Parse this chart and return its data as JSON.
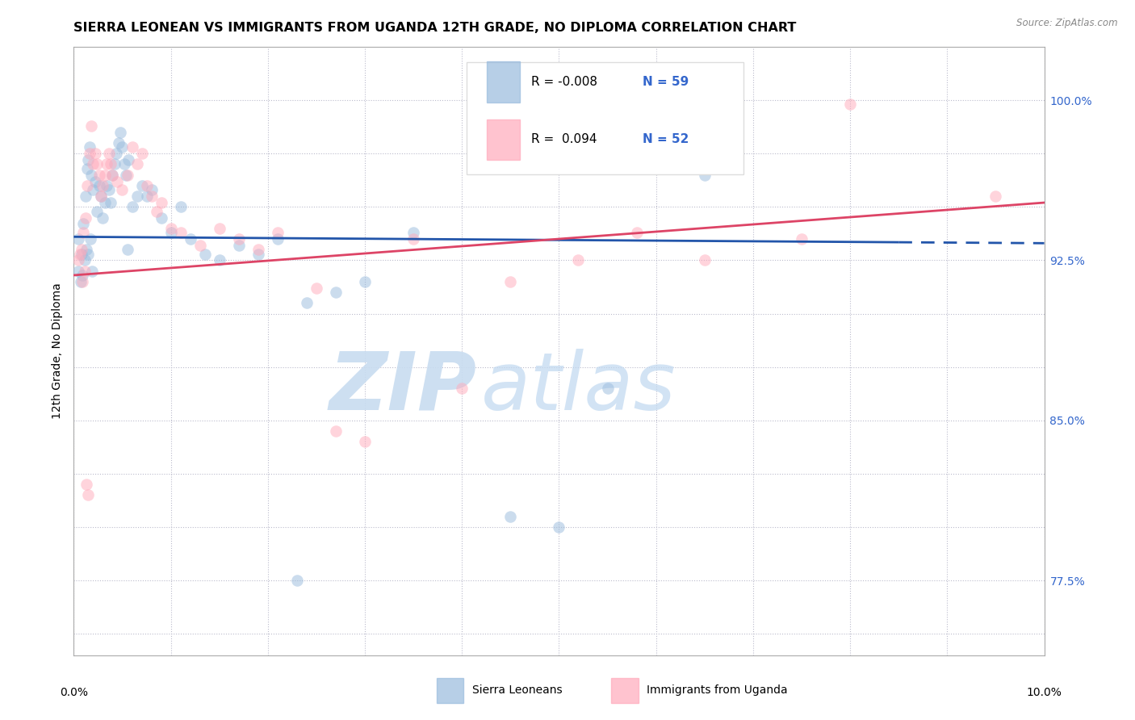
{
  "title": "SIERRA LEONEAN VS IMMIGRANTS FROM UGANDA 12TH GRADE, NO DIPLOMA CORRELATION CHART",
  "source": "Source: ZipAtlas.com",
  "ylabel": "12th Grade, No Diploma",
  "yticks": [
    75.0,
    77.5,
    80.0,
    82.5,
    85.0,
    87.5,
    90.0,
    92.5,
    95.0,
    97.5,
    100.0
  ],
  "ytick_labels": [
    "",
    "77.5%",
    "",
    "",
    "85.0%",
    "",
    "",
    "92.5%",
    "",
    "",
    "100.0%"
  ],
  "xmin": 0.0,
  "xmax": 10.0,
  "ymin": 74.0,
  "ymax": 102.5,
  "legend_R1": "R = -0.008",
  "legend_N1": "N = 59",
  "legend_R2": "R =  0.094",
  "legend_N2": "N = 52",
  "legend_label1": "Sierra Leoneans",
  "legend_label2": "Immigrants from Uganda",
  "blue_color": "#99BBDD",
  "pink_color": "#FFAABB",
  "blue_edge_color": "#88AACC",
  "pink_edge_color": "#EE8899",
  "blue_line_color": "#2255AA",
  "pink_line_color": "#DD4466",
  "blue_line_y0": 93.6,
  "blue_line_y1": 93.3,
  "pink_line_y0": 91.8,
  "pink_line_y1": 95.2,
  "blue_dash_start": 8.5,
  "blue_points_x": [
    0.05,
    0.08,
    0.1,
    0.12,
    0.14,
    0.15,
    0.16,
    0.18,
    0.2,
    0.22,
    0.24,
    0.26,
    0.28,
    0.3,
    0.32,
    0.34,
    0.36,
    0.38,
    0.4,
    0.42,
    0.44,
    0.46,
    0.48,
    0.5,
    0.52,
    0.54,
    0.56,
    0.6,
    0.65,
    0.7,
    0.75,
    0.8,
    0.9,
    1.0,
    1.1,
    1.2,
    1.35,
    1.5,
    1.7,
    1.9,
    2.1,
    2.4,
    2.7,
    3.0,
    3.5,
    4.5,
    5.0,
    5.5,
    6.5,
    0.05,
    0.07,
    0.09,
    0.11,
    0.13,
    0.15,
    0.17,
    0.19,
    0.55,
    2.3
  ],
  "blue_points_y": [
    93.5,
    92.8,
    94.2,
    95.5,
    96.8,
    97.2,
    97.8,
    96.5,
    95.8,
    96.2,
    94.8,
    96.0,
    95.5,
    94.5,
    95.2,
    96.0,
    95.8,
    95.2,
    96.5,
    97.0,
    97.5,
    98.0,
    98.5,
    97.8,
    97.0,
    96.5,
    97.2,
    95.0,
    95.5,
    96.0,
    95.5,
    95.8,
    94.5,
    93.8,
    95.0,
    93.5,
    92.8,
    92.5,
    93.2,
    92.8,
    93.5,
    90.5,
    91.0,
    91.5,
    93.8,
    80.5,
    80.0,
    86.5,
    96.5,
    92.0,
    91.5,
    91.8,
    92.5,
    93.0,
    92.8,
    93.5,
    92.0,
    93.0,
    77.5
  ],
  "pink_points_x": [
    0.05,
    0.08,
    0.1,
    0.12,
    0.14,
    0.16,
    0.18,
    0.2,
    0.22,
    0.24,
    0.26,
    0.28,
    0.3,
    0.32,
    0.34,
    0.36,
    0.38,
    0.4,
    0.45,
    0.5,
    0.55,
    0.6,
    0.65,
    0.7,
    0.75,
    0.8,
    0.85,
    0.9,
    1.0,
    1.1,
    1.3,
    1.5,
    1.7,
    1.9,
    2.1,
    2.5,
    2.7,
    3.0,
    3.5,
    4.0,
    4.5,
    5.2,
    5.8,
    6.5,
    7.5,
    8.0,
    9.5,
    0.06,
    0.09,
    0.11,
    0.13,
    0.15
  ],
  "pink_points_y": [
    92.5,
    93.0,
    93.8,
    94.5,
    96.0,
    97.5,
    98.8,
    97.0,
    97.5,
    97.0,
    96.5,
    95.5,
    96.0,
    96.5,
    97.0,
    97.5,
    97.0,
    96.5,
    96.2,
    95.8,
    96.5,
    97.8,
    97.0,
    97.5,
    96.0,
    95.5,
    94.8,
    95.2,
    94.0,
    93.8,
    93.2,
    94.0,
    93.5,
    93.0,
    93.8,
    91.2,
    84.5,
    84.0,
    93.5,
    86.5,
    91.5,
    92.5,
    93.8,
    92.5,
    93.5,
    99.8,
    95.5,
    92.8,
    91.5,
    92.0,
    82.0,
    81.5
  ],
  "watermark_zip": "ZIP",
  "watermark_atlas": "atlas",
  "title_fontsize": 11.5,
  "axis_label_fontsize": 10,
  "tick_fontsize": 10,
  "marker_size": 110
}
